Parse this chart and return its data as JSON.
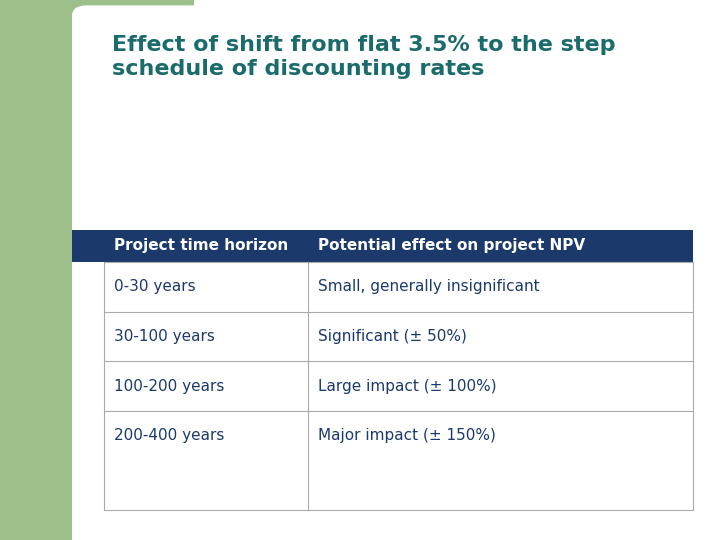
{
  "title_line1": "Effect of shift from flat 3.5% to the step",
  "title_line2": "schedule of discounting rates",
  "title_color": "#1a6b6b",
  "title_fontsize": 16,
  "title_fontweight": "bold",
  "header_row": [
    "Project time horizon",
    "Potential effect on project NPV"
  ],
  "rows": [
    [
      "0-30 years",
      "Small, generally insignificant"
    ],
    [
      "30-100 years",
      "Significant (± 50%)"
    ],
    [
      "100-200 years",
      "Large impact (± 100%)"
    ],
    [
      "200-400 years",
      "Major impact (± 150%)"
    ]
  ],
  "header_bg_color": "#1b3a6b",
  "header_text_color": "#ffffff",
  "table_border_color": "#aaaaaa",
  "table_text_color": "#1b3a6b",
  "cell_text_fontsize": 11,
  "header_text_fontsize": 11,
  "bg_color": "#ffffff",
  "green_color": "#9dc08b",
  "white_card_color": "#ffffff"
}
